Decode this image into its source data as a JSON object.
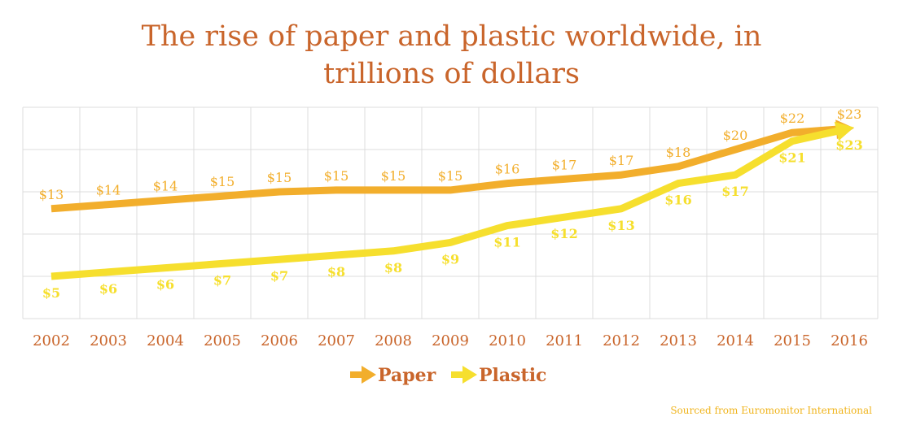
{
  "title_line1": "The rise of paper and plastic worldwide, in",
  "title_line2": "trillions of dollars",
  "source": "Sourced from Euromonitor International",
  "colors": {
    "title": "#c9652b",
    "paper": "#f2ae2c",
    "plastic": "#f6df2e",
    "grid": "#dcdcdc",
    "axis_text": "#c9652b"
  },
  "chart_data": {
    "type": "line",
    "x": [
      "2002",
      "2003",
      "2004",
      "2005",
      "2006",
      "2007",
      "2008",
      "2009",
      "2010",
      "2011",
      "2012",
      "2013",
      "2014",
      "2015",
      "2016"
    ],
    "ylim": [
      0,
      25
    ],
    "grid": true,
    "legend_position": "bottom-center",
    "series": [
      {
        "name": "Paper",
        "color": "#f2ae2c",
        "values": [
          13,
          13.5,
          14,
          14.5,
          15,
          15.2,
          15.2,
          15.2,
          16,
          16.5,
          17,
          18,
          20,
          22,
          22.5
        ],
        "labels": [
          "$13",
          "$14",
          "$14",
          "$15",
          "$15",
          "$15",
          "$15",
          "$15",
          "$16",
          "$17",
          "$17",
          "$18",
          "$20",
          "$22",
          "$23"
        ]
      },
      {
        "name": "Plastic",
        "color": "#f6df2e",
        "values": [
          5,
          5.5,
          6,
          6.5,
          7,
          7.5,
          8,
          9,
          11,
          12,
          13,
          16,
          17,
          21,
          22.5
        ],
        "labels": [
          "$5",
          "$6",
          "$6",
          "$7",
          "$7",
          "$8",
          "$8",
          "$9",
          "$11",
          "$12",
          "$13",
          "$16",
          "$17",
          "$21",
          "$23"
        ]
      }
    ]
  }
}
